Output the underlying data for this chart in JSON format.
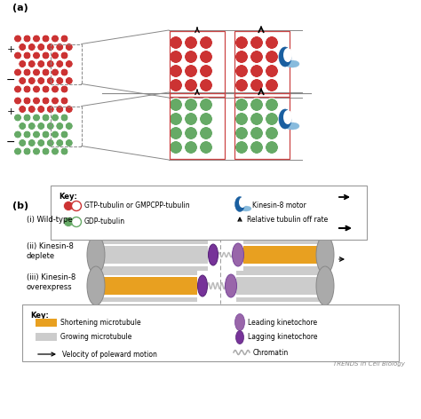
{
  "bg_color": "#ffffff",
  "panel_a_label": "(a)",
  "panel_b_label": "(b)",
  "red_color": "#cc3333",
  "green_color": "#66aa66",
  "blue_dark": "#1a5fa0",
  "blue_light": "#88bbdd",
  "orange_color": "#e8a020",
  "gray_pole": "#aaaaaa",
  "gray_mt": "#cccccc",
  "purple_leading": "#9966aa",
  "purple_lagging": "#773399",
  "key1_item1": "GTP-tubulin or GMPCPP-tubulin",
  "key1_item2": "GDP-tubulin",
  "key1_item3": "Kinesin-8 motor",
  "key1_item4": "Relative tubulin off rate",
  "key2_item1": "Shortening microtubule",
  "key2_item2": "Growing microtubule",
  "key2_item3": "Velocity of poleward motion",
  "key2_item4": "Leading kinetochore",
  "key2_item5": "Lagging kinetochore",
  "key2_item6": "Chromatin",
  "b_label1": "(i) Wild-type",
  "b_label2": "(ii) Kinesin-8\ndeplete",
  "b_label3": "(iii) Kinesin-8\noverexpress",
  "trends_label": "TRENDS in Cell Biology"
}
